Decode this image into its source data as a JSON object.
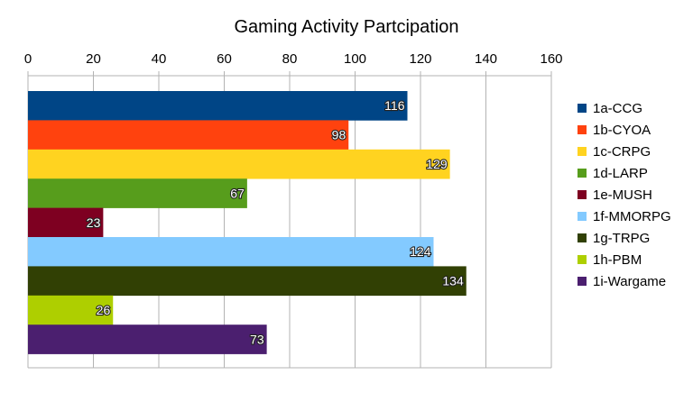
{
  "chart_data": {
    "type": "bar",
    "orientation": "horizontal",
    "title": "Gaming Activity Partcipation",
    "xlabel": "",
    "ylabel": "",
    "xlim": [
      0,
      160
    ],
    "x_ticks": [
      0,
      20,
      40,
      60,
      80,
      100,
      120,
      140,
      160
    ],
    "grid": true,
    "legend_position": "right",
    "series": [
      {
        "name": "1a-CCG",
        "value": 116,
        "color": "#004586"
      },
      {
        "name": "1b-CYOA",
        "value": 98,
        "color": "#ff420e"
      },
      {
        "name": "1c-CRPG",
        "value": 129,
        "color": "#ffd320"
      },
      {
        "name": "1d-LARP",
        "value": 67,
        "color": "#579d1c"
      },
      {
        "name": "1e-MUSH",
        "value": 23,
        "color": "#7e0021"
      },
      {
        "name": "1f-MMORPG",
        "value": 124,
        "color": "#83caff"
      },
      {
        "name": "1g-TRPG",
        "value": 134,
        "color": "#314004"
      },
      {
        "name": "1h-PBM",
        "value": 26,
        "color": "#aecf00"
      },
      {
        "name": "1i-Wargame",
        "value": 73,
        "color": "#4b1f6f"
      }
    ]
  }
}
